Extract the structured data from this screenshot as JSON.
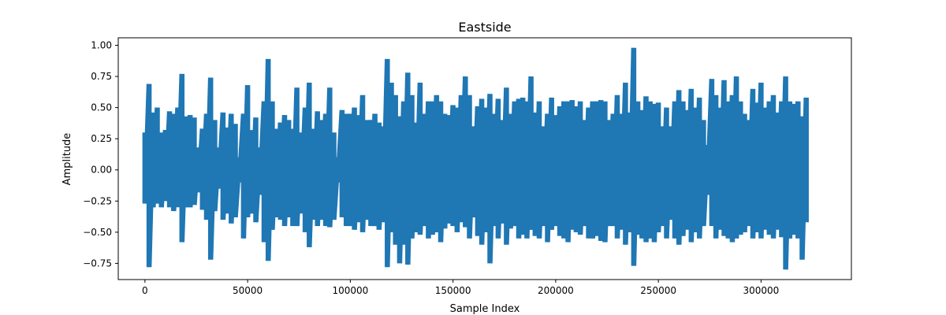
{
  "chart_data": {
    "type": "line",
    "title": "Eastside",
    "xlabel": "Sample Index",
    "ylabel": "Amplitude",
    "xlim": [
      -13000,
      344000
    ],
    "ylim": [
      -0.88,
      1.06
    ],
    "grid": false,
    "legend": "none",
    "series_color": "#1f77b4",
    "xticks": [
      0,
      50000,
      100000,
      150000,
      200000,
      250000,
      300000
    ],
    "xtick_labels": [
      "0",
      "50000",
      "100000",
      "150000",
      "200000",
      "250000",
      "300000"
    ],
    "yticks": [
      -0.75,
      -0.5,
      -0.25,
      0.0,
      0.25,
      0.5,
      0.75,
      1.0
    ],
    "ytick_labels": [
      "−0.75",
      "−0.50",
      "−0.25",
      "0.00",
      "0.25",
      "0.50",
      "0.75",
      "1.00"
    ],
    "series": [
      {
        "x": [
          0,
          2000,
          4000,
          6000,
          8000,
          10000,
          12000,
          14000,
          16000,
          18000,
          20000,
          22000,
          24000,
          26000,
          28000,
          30000,
          32000,
          34000,
          36000,
          38000,
          40000,
          42000,
          44000,
          46000,
          48000,
          50000,
          52000,
          54000,
          56000,
          58000,
          60000,
          62000,
          64000,
          66000,
          68000,
          70000,
          72000,
          74000,
          76000,
          78000,
          80000,
          82000,
          84000,
          86000,
          88000,
          90000,
          92000,
          94000,
          96000,
          98000,
          100000,
          102000,
          104000,
          106000,
          108000,
          110000,
          112000,
          114000,
          116000,
          118000,
          120000,
          122000,
          124000,
          126000,
          128000,
          130000,
          132000,
          134000,
          136000,
          138000,
          140000,
          142000,
          144000,
          146000,
          148000,
          150000,
          152000,
          154000,
          156000,
          158000,
          160000,
          162000,
          164000,
          166000,
          168000,
          170000,
          172000,
          174000,
          176000,
          178000,
          180000,
          182000,
          184000,
          186000,
          188000,
          190000,
          192000,
          194000,
          196000,
          198000,
          200000,
          202000,
          204000,
          206000,
          208000,
          210000,
          212000,
          214000,
          216000,
          218000,
          220000,
          222000,
          224000,
          226000,
          228000,
          230000,
          232000,
          234000,
          236000,
          238000,
          240000,
          242000,
          244000,
          246000,
          248000,
          250000,
          252000,
          254000,
          256000,
          258000,
          260000,
          262000,
          264000,
          266000,
          268000,
          270000,
          272000,
          274000,
          276000,
          278000,
          280000,
          282000,
          284000,
          286000,
          288000,
          290000,
          292000,
          294000,
          296000,
          298000,
          300000,
          302000,
          304000,
          306000,
          308000,
          310000,
          312000,
          314000,
          316000,
          318000,
          320000,
          322000,
          324000,
          326000,
          328000,
          330000
        ],
        "max": [
          0.3,
          0.69,
          0.46,
          0.5,
          0.3,
          0.32,
          0.47,
          0.45,
          0.5,
          0.77,
          0.43,
          0.44,
          0.42,
          0.18,
          0.33,
          0.45,
          0.74,
          0.4,
          0.18,
          0.46,
          0.34,
          0.45,
          0.37,
          0.1,
          0.45,
          0.68,
          0.32,
          0.42,
          0.18,
          0.55,
          0.89,
          0.55,
          0.33,
          0.38,
          0.44,
          0.4,
          0.33,
          0.66,
          0.3,
          0.5,
          0.7,
          0.33,
          0.47,
          0.4,
          0.45,
          0.66,
          0.3,
          0.1,
          0.48,
          0.45,
          0.45,
          0.5,
          0.44,
          0.6,
          0.4,
          0.4,
          0.45,
          0.38,
          0.35,
          0.89,
          0.7,
          0.6,
          0.43,
          0.55,
          0.78,
          0.6,
          0.38,
          0.7,
          0.45,
          0.55,
          0.55,
          0.6,
          0.55,
          0.45,
          0.44,
          0.52,
          0.5,
          0.6,
          0.75,
          0.6,
          0.35,
          0.51,
          0.57,
          0.5,
          0.61,
          0.45,
          0.57,
          0.4,
          0.66,
          0.45,
          0.55,
          0.57,
          0.58,
          0.55,
          0.75,
          0.46,
          0.55,
          0.35,
          0.45,
          0.58,
          0.44,
          0.51,
          0.55,
          0.55,
          0.56,
          0.51,
          0.55,
          0.4,
          0.5,
          0.55,
          0.55,
          0.56,
          0.55,
          0.4,
          0.45,
          0.6,
          0.45,
          0.7,
          0.46,
          0.98,
          0.55,
          0.48,
          0.59,
          0.55,
          0.53,
          0.54,
          0.35,
          0.5,
          0.35,
          0.55,
          0.64,
          0.55,
          0.48,
          0.65,
          0.5,
          0.58,
          0.4,
          0.2,
          0.73,
          0.6,
          0.5,
          0.72,
          0.55,
          0.6,
          0.75,
          0.55,
          0.45,
          0.4,
          0.65,
          0.54,
          0.7,
          0.5,
          0.55,
          0.6,
          0.46,
          0.55,
          0.75,
          0.55,
          0.53,
          0.55,
          0.43,
          0.58
        ],
        "min": [
          -0.27,
          -0.78,
          -0.3,
          -0.27,
          -0.3,
          -0.25,
          -0.3,
          -0.33,
          -0.3,
          -0.58,
          -0.3,
          -0.3,
          -0.28,
          -0.18,
          -0.32,
          -0.4,
          -0.72,
          -0.33,
          -0.15,
          -0.4,
          -0.35,
          -0.43,
          -0.38,
          -0.1,
          -0.55,
          -0.38,
          -0.35,
          -0.42,
          -0.2,
          -0.58,
          -0.73,
          -0.48,
          -0.38,
          -0.4,
          -0.45,
          -0.38,
          -0.45,
          -0.45,
          -0.35,
          -0.5,
          -0.62,
          -0.4,
          -0.45,
          -0.4,
          -0.45,
          -0.46,
          -0.4,
          -0.1,
          -0.38,
          -0.45,
          -0.45,
          -0.48,
          -0.42,
          -0.5,
          -0.4,
          -0.45,
          -0.45,
          -0.48,
          -0.42,
          -0.78,
          -0.5,
          -0.6,
          -0.75,
          -0.6,
          -0.76,
          -0.55,
          -0.5,
          -0.52,
          -0.45,
          -0.55,
          -0.52,
          -0.5,
          -0.58,
          -0.47,
          -0.43,
          -0.45,
          -0.5,
          -0.42,
          -0.46,
          -0.55,
          -0.38,
          -0.53,
          -0.6,
          -0.5,
          -0.75,
          -0.45,
          -0.55,
          -0.43,
          -0.6,
          -0.47,
          -0.45,
          -0.55,
          -0.52,
          -0.55,
          -0.48,
          -0.53,
          -0.55,
          -0.45,
          -0.58,
          -0.48,
          -0.45,
          -0.53,
          -0.55,
          -0.58,
          -0.48,
          -0.5,
          -0.52,
          -0.45,
          -0.55,
          -0.55,
          -0.53,
          -0.57,
          -0.58,
          -0.45,
          -0.45,
          -0.55,
          -0.48,
          -0.6,
          -0.5,
          -0.77,
          -0.52,
          -0.55,
          -0.58,
          -0.55,
          -0.58,
          -0.5,
          -0.45,
          -0.55,
          -0.4,
          -0.55,
          -0.6,
          -0.53,
          -0.48,
          -0.58,
          -0.5,
          -0.55,
          -0.45,
          -0.2,
          -0.45,
          -0.55,
          -0.48,
          -0.53,
          -0.55,
          -0.58,
          -0.55,
          -0.52,
          -0.5,
          -0.45,
          -0.55,
          -0.5,
          -0.55,
          -0.48,
          -0.52,
          -0.55,
          -0.48,
          -0.54,
          -0.8,
          -0.55,
          -0.52,
          -0.55,
          -0.72,
          -0.42
        ]
      }
    ]
  }
}
